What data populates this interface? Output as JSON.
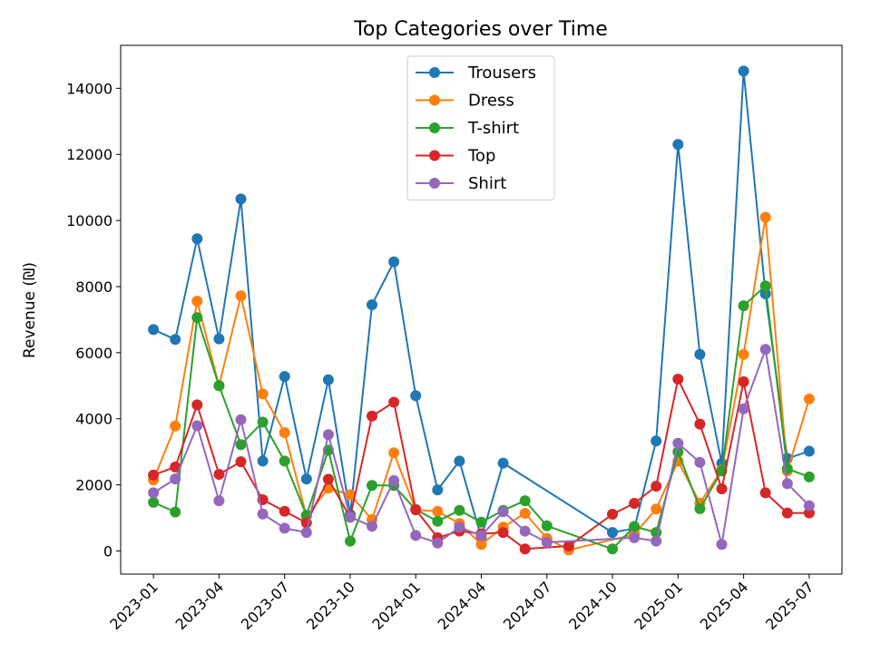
{
  "chart_data": {
    "type": "line",
    "title": "Top Categories over Time",
    "xlabel": "",
    "ylabel": "Revenue (₪)",
    "ylim": [
      -700,
      15300
    ],
    "yticks": [
      0,
      2000,
      4000,
      6000,
      8000,
      10000,
      12000,
      14000
    ],
    "xticks": [
      "2023-01",
      "2023-04",
      "2023-07",
      "2023-10",
      "2024-01",
      "2024-04",
      "2024-07",
      "2024-10",
      "2025-01",
      "2025-04",
      "2025-07"
    ],
    "legend_position": "upper center",
    "grid": false,
    "x": [
      "2023-01",
      "2023-02",
      "2023-03",
      "2023-04",
      "2023-05",
      "2023-06",
      "2023-07",
      "2023-08",
      "2023-09",
      "2023-10",
      "2023-11",
      "2023-12",
      "2024-01",
      "2024-02",
      "2024-03",
      "2024-04",
      "2024-05",
      "2024-06",
      "2024-07",
      "2024-08",
      "2024-10",
      "2024-11",
      "2024-12",
      "2025-01",
      "2025-02",
      "2025-03",
      "2025-04",
      "2025-05",
      "2025-06",
      "2025-07"
    ],
    "series": [
      {
        "name": "Trousers",
        "color": "#1f77b4",
        "values": [
          6700,
          6400,
          9450,
          6420,
          10650,
          2720,
          5280,
          2180,
          5180,
          1100,
          7450,
          8750,
          4700,
          1850,
          2720,
          400,
          2660,
          null,
          null,
          null,
          560,
          680,
          3330,
          12300,
          5950,
          2650,
          14520,
          7780,
          2800,
          3020
        ]
      },
      {
        "name": "Dress",
        "color": "#ff7f0e",
        "values": [
          2150,
          3780,
          7560,
          5000,
          7720,
          4750,
          3580,
          1050,
          1900,
          1700,
          950,
          2970,
          1240,
          1200,
          830,
          200,
          720,
          1140,
          380,
          30,
          null,
          500,
          1270,
          2720,
          1450,
          2450,
          5950,
          10100,
          2420,
          4600
        ]
      },
      {
        "name": "T-shirt",
        "color": "#2ca02c",
        "values": [
          1470,
          1180,
          7060,
          5000,
          3220,
          3900,
          2720,
          1080,
          3050,
          300,
          1980,
          1980,
          1250,
          900,
          1230,
          870,
          1230,
          1520,
          760,
          null,
          60,
          740,
          560,
          3000,
          1280,
          2420,
          7420,
          8020,
          2490,
          2240
        ]
      },
      {
        "name": "Top",
        "color": "#d62728",
        "values": [
          2300,
          2540,
          4420,
          2320,
          2700,
          1550,
          1200,
          850,
          2170,
          1020,
          4080,
          4500,
          1250,
          400,
          600,
          520,
          560,
          60,
          null,
          150,
          1110,
          1440,
          1960,
          5200,
          3840,
          1880,
          5120,
          1760,
          1150,
          1150
        ]
      },
      {
        "name": "Shirt",
        "color": "#9467bd",
        "values": [
          1760,
          2180,
          3790,
          1520,
          3970,
          1120,
          690,
          560,
          3520,
          1020,
          750,
          2130,
          470,
          240,
          720,
          460,
          1190,
          600,
          260,
          null,
          null,
          400,
          300,
          3260,
          2680,
          200,
          4300,
          6100,
          2040,
          1370
        ]
      }
    ]
  }
}
